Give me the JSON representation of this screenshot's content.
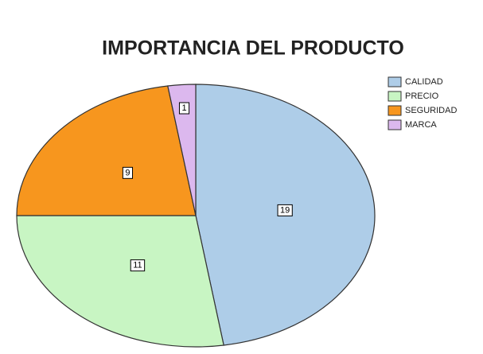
{
  "chart_data": {
    "type": "pie",
    "title": "IMPORTANCIA DEL PRODUCTO",
    "categories": [
      "CALIDAD",
      "PRECIO",
      "SEGURIDAD",
      "MARCA"
    ],
    "values": [
      19,
      11,
      9,
      1
    ],
    "colors": [
      "#aecde8",
      "#c8f5c3",
      "#f7961e",
      "#dcb8ee"
    ],
    "legend": "top-right"
  }
}
